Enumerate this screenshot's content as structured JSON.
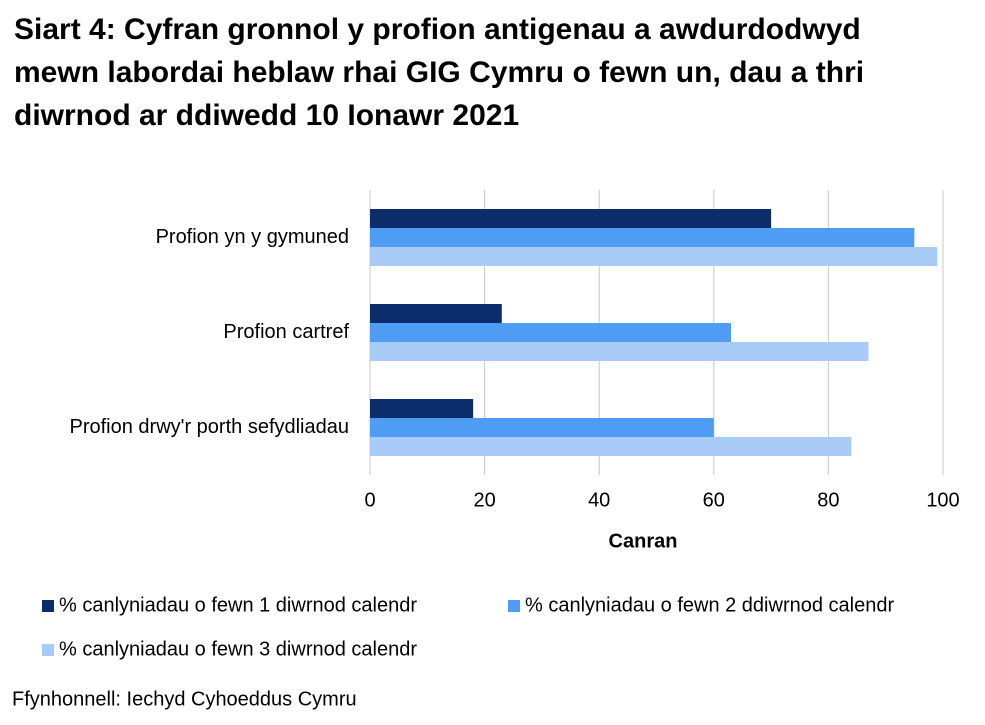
{
  "chart_data": {
    "type": "bar",
    "orientation": "horizontal",
    "title": "Siart 4: Cyfran gronnol y profion antigenau a awdurdodwyd mewn labordai heblaw rhai GIG Cymru o fewn un, dau a thri diwrnod ar ddiwedd 10 Ionawr 2021",
    "categories": [
      "Profion yn y gymuned",
      "Profion cartref",
      "Profion drwy'r porth sefydliadau"
    ],
    "series": [
      {
        "name": "% canlyniadau o fewn 1 diwrnod calendr",
        "color": "#0b2d6b",
        "values": [
          70,
          23,
          18
        ]
      },
      {
        "name": "% canlyniadau o fewn 2 ddiwrnod calendr",
        "color": "#4f9cf5",
        "values": [
          95,
          63,
          60
        ]
      },
      {
        "name": "% canlyniadau o fewn 3 diwrnod calendr",
        "color": "#a8cbf8",
        "values": [
          99,
          87,
          84
        ]
      }
    ],
    "xlim": [
      0,
      100
    ],
    "xticks": [
      0,
      20,
      40,
      60,
      80,
      100
    ],
    "xlabel": "Canran",
    "grid": true,
    "legend": "bottom",
    "source": "Ffynhonnell: Iechyd Cyhoeddus Cymru"
  }
}
